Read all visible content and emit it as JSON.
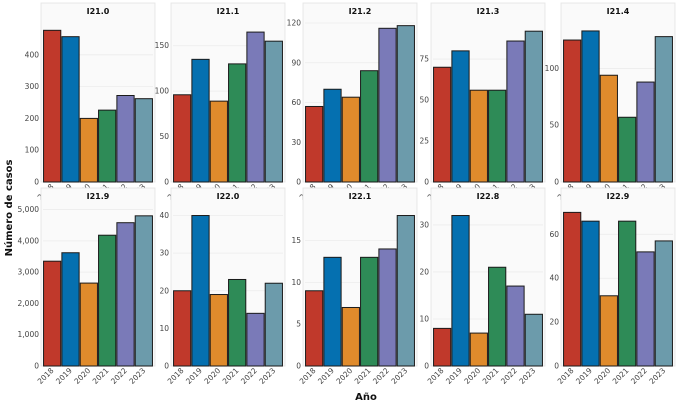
{
  "figure": {
    "ylabel": "Número de casos",
    "xlabel": "Año"
  },
  "colors": [
    "#c0392b",
    "#0570b0",
    "#e08b2c",
    "#2e8b57",
    "#7a7ab8",
    "#6c9bab"
  ],
  "chart_data": [
    {
      "type": "bar",
      "title": "I21.0",
      "categories": [
        "2018",
        "2019",
        "2020",
        "2021",
        "2022",
        "2023"
      ],
      "values": [
        477,
        457,
        200,
        226,
        272,
        262
      ],
      "ylim": [
        0,
        500
      ],
      "yticks": [
        0,
        100,
        200,
        300,
        400
      ],
      "ytick_labels": [
        "0",
        "100",
        "200",
        "300",
        "400"
      ]
    },
    {
      "type": "bar",
      "title": "I21.1",
      "categories": [
        "2018",
        "2019",
        "2020",
        "2021",
        "2022",
        "2023"
      ],
      "values": [
        96,
        135,
        89,
        130,
        165,
        155
      ],
      "ylim": [
        0,
        175
      ],
      "yticks": [
        0,
        50,
        100,
        150
      ],
      "ytick_labels": [
        "0",
        "50",
        "100",
        "150"
      ]
    },
    {
      "type": "bar",
      "title": "I21.2",
      "categories": [
        "2018",
        "2019",
        "2020",
        "2021",
        "2022",
        "2023"
      ],
      "values": [
        57,
        70,
        64,
        84,
        116,
        118
      ],
      "ylim": [
        0,
        120
      ],
      "yticks": [
        0,
        30,
        60,
        90,
        120
      ],
      "ytick_labels": [
        "0",
        "30",
        "60",
        "90",
        "120"
      ]
    },
    {
      "type": "bar",
      "title": "I21.3",
      "categories": [
        "2018",
        "2019",
        "2020",
        "2021",
        "2022",
        "2023"
      ],
      "values": [
        70,
        80,
        56,
        56,
        86,
        92
      ],
      "ylim": [
        0,
        97
      ],
      "yticks": [
        0,
        25,
        50,
        75
      ],
      "ytick_labels": [
        "0",
        "25",
        "50",
        "75"
      ]
    },
    {
      "type": "bar",
      "title": "I21.4",
      "categories": [
        "2018",
        "2019",
        "2020",
        "2021",
        "2022",
        "2023"
      ],
      "values": [
        125,
        133,
        94,
        57,
        88,
        128
      ],
      "ylim": [
        0,
        140
      ],
      "yticks": [
        0,
        50,
        100
      ],
      "ytick_labels": [
        "0",
        "50",
        "100"
      ]
    },
    {
      "type": "bar",
      "title": "I21.9",
      "categories": [
        "2018",
        "2019",
        "2020",
        "2021",
        "2022",
        "2023"
      ],
      "values": [
        3350,
        3620,
        2650,
        4180,
        4580,
        4800
      ],
      "ylim": [
        0,
        5050
      ],
      "yticks": [
        0,
        1000,
        2000,
        3000,
        4000,
        5000
      ],
      "ytick_labels": [
        "0",
        "1,000",
        "2,000",
        "3,000",
        "4,000",
        "5,000"
      ]
    },
    {
      "type": "bar",
      "title": "I22.0",
      "categories": [
        "2018",
        "2019",
        "2020",
        "2021",
        "2022",
        "2023"
      ],
      "values": [
        20,
        40,
        19,
        23,
        14,
        22
      ],
      "ylim": [
        0,
        42
      ],
      "yticks": [
        0,
        10,
        20,
        30,
        40
      ],
      "ytick_labels": [
        "0",
        "10",
        "20",
        "30",
        "40"
      ]
    },
    {
      "type": "bar",
      "title": "I22.1",
      "categories": [
        "2018",
        "2019",
        "2020",
        "2021",
        "2022",
        "2023"
      ],
      "values": [
        9,
        13,
        7,
        13,
        14,
        18
      ],
      "ylim": [
        0,
        18.9
      ],
      "yticks": [
        0,
        5,
        10,
        15
      ],
      "ytick_labels": [
        "0",
        "5",
        "10",
        "15"
      ]
    },
    {
      "type": "bar",
      "title": "I22.8",
      "categories": [
        "2018",
        "2019",
        "2020",
        "2021",
        "2022",
        "2023"
      ],
      "values": [
        8,
        32,
        7,
        21,
        17,
        11
      ],
      "ylim": [
        0,
        33.6
      ],
      "yticks": [
        0,
        10,
        20,
        30
      ],
      "ytick_labels": [
        "0",
        "10",
        "20",
        "30"
      ]
    },
    {
      "type": "bar",
      "title": "I22.9",
      "categories": [
        "2018",
        "2019",
        "2020",
        "2021",
        "2022",
        "2023"
      ],
      "values": [
        70,
        66,
        32,
        66,
        52,
        57
      ],
      "ylim": [
        0,
        72
      ],
      "yticks": [
        0,
        20,
        40,
        60
      ],
      "ytick_labels": [
        "0",
        "20",
        "40",
        "60"
      ]
    }
  ]
}
